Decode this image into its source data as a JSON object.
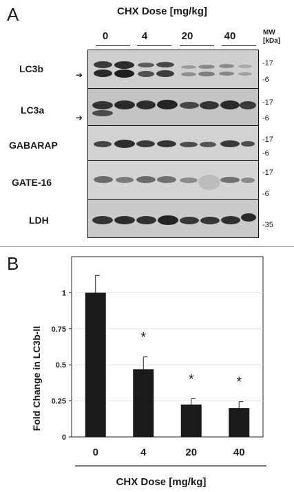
{
  "panel_a": {
    "letter": "A",
    "dose_title": "CHX Dose [mg/kg]",
    "doses": [
      "0",
      "4",
      "20",
      "40"
    ],
    "mw_header": [
      "MW",
      "[kDa]"
    ],
    "rows": [
      {
        "label": "LC3b",
        "markers": [
          "-17",
          "-6"
        ],
        "arrow": true
      },
      {
        "label": "LC3a",
        "markers": [
          "-17",
          "-6"
        ],
        "arrow": true
      },
      {
        "label": "GABARAP",
        "markers": [
          "-17",
          "-6"
        ],
        "arrow": false
      },
      {
        "label": "GATE-16",
        "markers": [
          "-17",
          "-6"
        ],
        "arrow": false
      },
      {
        "label": "LDH",
        "markers": [
          "-35"
        ],
        "arrow": false
      }
    ]
  },
  "panel_b": {
    "letter": "B"
  },
  "chart_data": {
    "type": "bar",
    "categories": [
      "0",
      "4",
      "20",
      "40"
    ],
    "values": [
      1.0,
      0.47,
      0.225,
      0.2
    ],
    "errors": [
      0.12,
      0.085,
      0.04,
      0.045
    ],
    "significance": [
      "",
      "*",
      "*",
      "*"
    ],
    "xlabel": "CHX Dose [mg/kg]",
    "ylabel": "Fold Change in LC3b-II",
    "ylim": [
      0,
      1.25
    ],
    "yticks": [
      "0",
      "0.25",
      "0.5",
      "0.75",
      "1"
    ],
    "grid": true,
    "bar_color": "#1a1a1a"
  }
}
